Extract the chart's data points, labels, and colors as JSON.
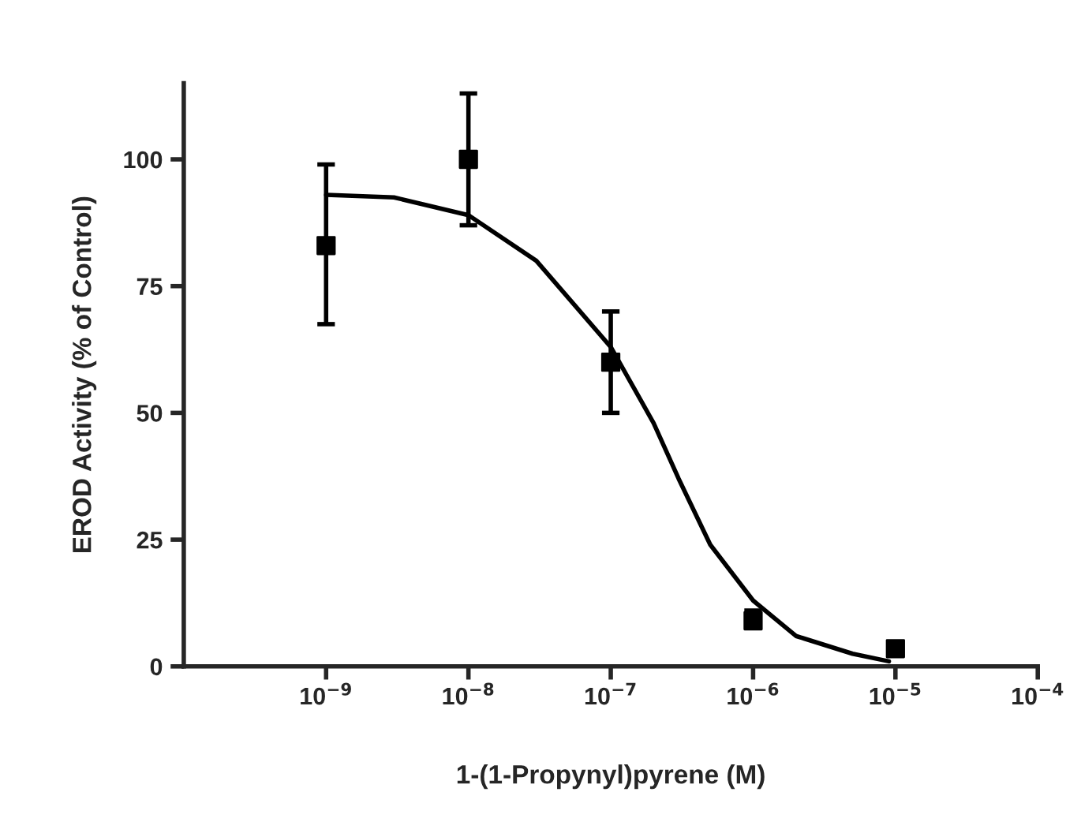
{
  "chart_data": {
    "type": "scatter",
    "xlabel": "1-(1-Propynyl)pyrene (M)",
    "ylabel": "EROD Activity (% of Control)",
    "log": "x",
    "xlim": [
      1e-10,
      0.0001
    ],
    "xticks": [
      {
        "value": 1e-09,
        "label": "10$^{−9}$"
      },
      {
        "value": 1e-08,
        "label": "10$^{−8}$"
      },
      {
        "value": 1e-07,
        "label": "10$^{−7}$"
      },
      {
        "value": 1e-06,
        "label": "10$^{−6}$"
      },
      {
        "value": 1e-05,
        "label": "10$^{−5}$"
      },
      {
        "value": 0.0001,
        "label": "10$^{−4}$"
      }
    ],
    "ylim": [
      0,
      115
    ],
    "yticks": [
      0,
      25,
      50,
      75,
      100
    ],
    "grid": false,
    "legend": false,
    "series": [
      {
        "color": "#000000",
        "marker": "square",
        "x": [
          1e-09,
          1e-08,
          1e-07,
          1e-06,
          1e-05
        ],
        "values": [
          83,
          100,
          60,
          9,
          3.5
        ],
        "errors": [
          [
            67.5,
            99
          ],
          [
            87,
            113
          ],
          [
            50,
            70
          ],
          [
            7.5,
            11
          ],
          [
            2.5,
            4.5
          ]
        ]
      },
      {
        "type": "line",
        "color": "#000000",
        "marker": "none",
        "line_style": "solid",
        "x": [
          1e-09,
          3e-09,
          1e-08,
          3e-08,
          1e-07,
          2e-07,
          3e-07,
          5e-07,
          1e-06,
          2e-06,
          5e-06,
          9e-06
        ],
        "values": [
          93,
          92.5,
          89,
          80,
          63,
          48,
          37,
          24,
          13,
          6,
          2.5,
          1
        ]
      }
    ]
  }
}
